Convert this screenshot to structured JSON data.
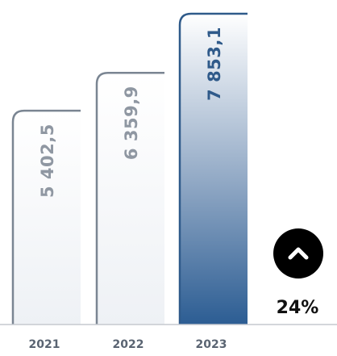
{
  "chart_data": {
    "type": "bar",
    "categories": [
      "2021",
      "2022",
      "2023"
    ],
    "values": [
      5402.5,
      6359.9,
      7853.1
    ],
    "value_labels": [
      "5 402,5",
      "6 359,9",
      "7 853,1"
    ],
    "growth": {
      "label": "24%",
      "direction": "up",
      "icon": "chevron-up-icon"
    },
    "colors": {
      "bar_outline": "#7a8592",
      "bar_fill_light": "#f0f3f7",
      "bar_fill_highlight_top": "#ffffff",
      "bar_fill_highlight_bottom": "#2c5d93",
      "highlight_outline": "#2f5a8a",
      "value_text": "#8f97a2",
      "highlight_value_text": "#2f5a8a",
      "baseline": "#c5c9cf",
      "badge": "#000000"
    }
  }
}
